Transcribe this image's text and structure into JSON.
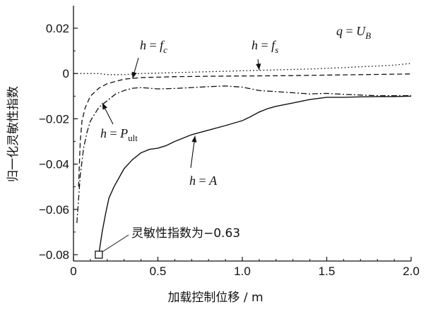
{
  "chart_data": {
    "type": "line",
    "xlabel": "加载控制位移 / m",
    "ylabel": "归一化灵敏性指数",
    "xlim": [
      0,
      2.0
    ],
    "ylim": [
      -0.08,
      0.03
    ],
    "xticks": [
      0,
      0.5,
      1.0,
      1.5,
      2.0
    ],
    "xtick_labels": [
      "0",
      "0.5",
      "1.0",
      "1.5",
      "2.0"
    ],
    "yticks": [
      0.02,
      0,
      -0.02,
      -0.04,
      -0.06,
      -0.08
    ],
    "ytick_labels": [
      "0.02",
      "0",
      "−0.02",
      "−0.04",
      "−0.06",
      "−0.08"
    ],
    "grid": false,
    "condition_label": {
      "lhs": "q",
      "eq": " = ",
      "sym": "U",
      "sub": "B"
    },
    "series": [
      {
        "id": "fs",
        "style": "dotted",
        "label": {
          "lhs": "h",
          "eq": " = ",
          "sym": "f",
          "sub": "s"
        },
        "x": [
          0,
          0.1,
          0.15,
          0.2,
          0.3,
          0.4,
          0.5,
          0.6,
          0.7,
          0.8,
          0.9,
          1.0,
          1.1,
          1.2,
          1.3,
          1.4,
          1.5,
          1.6,
          1.7,
          1.8,
          1.9,
          2.0
        ],
        "y": [
          0,
          0,
          0,
          -0.0005,
          -0.0005,
          0,
          0.0002,
          0.0004,
          0.0006,
          0.0008,
          0.001,
          0.0012,
          0.0014,
          0.0016,
          0.0018,
          0.002,
          0.0023,
          0.0026,
          0.003,
          0.0033,
          0.0037,
          0.0045
        ]
      },
      {
        "id": "fc",
        "style": "dashed",
        "label": {
          "lhs": "h",
          "eq": " = ",
          "sym": "f",
          "sub": "c"
        },
        "x": [
          0.03,
          0.04,
          0.05,
          0.07,
          0.1,
          0.15,
          0.2,
          0.3,
          0.4,
          0.6,
          0.8,
          1.0,
          1.2,
          1.4,
          1.6,
          1.8,
          2.0
        ],
        "y": [
          -0.05,
          -0.03,
          -0.021,
          -0.015,
          -0.01,
          -0.0065,
          -0.0045,
          -0.0025,
          -0.0018,
          -0.0014,
          -0.0012,
          -0.0011,
          -0.001,
          -0.0008,
          -0.0006,
          -0.0004,
          -0.0002
        ]
      },
      {
        "id": "pult",
        "style": "dashdot",
        "label": {
          "lhs": "h",
          "eq": " = ",
          "sym": "P",
          "sub": "ult"
        },
        "x": [
          0.02,
          0.04,
          0.06,
          0.08,
          0.1,
          0.15,
          0.2,
          0.25,
          0.3,
          0.35,
          0.4,
          0.5,
          0.6,
          0.7,
          0.8,
          0.9,
          1.0,
          1.1,
          1.2,
          1.3,
          1.4,
          1.5,
          1.6,
          1.7,
          1.8,
          1.9,
          2.0
        ],
        "y": [
          -0.066,
          -0.045,
          -0.033,
          -0.026,
          -0.021,
          -0.015,
          -0.012,
          -0.009,
          -0.0075,
          -0.0065,
          -0.0062,
          -0.0068,
          -0.0066,
          -0.0062,
          -0.0058,
          -0.0055,
          -0.006,
          -0.0075,
          -0.008,
          -0.0085,
          -0.009,
          -0.0088,
          -0.0092,
          -0.0095,
          -0.0098,
          -0.0098,
          -0.0098
        ]
      },
      {
        "id": "A",
        "style": "solid",
        "label": {
          "lhs": "h",
          "eq": " = ",
          "sym": "A",
          "sub": ""
        },
        "x": [
          0.15,
          0.17,
          0.19,
          0.21,
          0.24,
          0.27,
          0.3,
          0.35,
          0.4,
          0.45,
          0.5,
          0.55,
          0.6,
          0.7,
          0.8,
          0.9,
          1.0,
          1.05,
          1.1,
          1.15,
          1.2,
          1.3,
          1.4,
          1.5,
          1.6,
          1.7,
          1.8,
          1.9,
          2.0
        ],
        "y": [
          -0.08,
          -0.07,
          -0.062,
          -0.055,
          -0.05,
          -0.046,
          -0.042,
          -0.038,
          -0.035,
          -0.0335,
          -0.033,
          -0.0318,
          -0.03,
          -0.027,
          -0.025,
          -0.023,
          -0.0208,
          -0.019,
          -0.017,
          -0.0155,
          -0.0145,
          -0.013,
          -0.0115,
          -0.0105,
          -0.0105,
          -0.0103,
          -0.0102,
          -0.0102,
          -0.01
        ]
      }
    ],
    "marker": {
      "x": 0.15,
      "y": -0.08,
      "shape": "square",
      "label": "灵敏性指数为−0.63"
    }
  }
}
